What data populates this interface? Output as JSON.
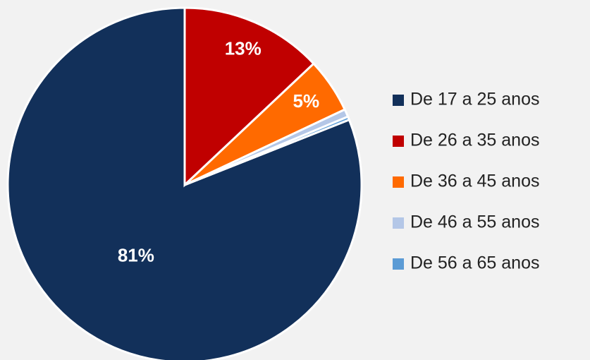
{
  "chart_data": {
    "type": "pie",
    "categories": [
      "De 17 a 25 anos",
      "De 26 a 35 anos",
      "De 36 a 45 anos",
      "De 46 a 55 anos",
      "De 56 a 65 anos"
    ],
    "values": [
      81,
      13,
      5,
      0.7,
      0.3
    ],
    "value_labels": [
      "81%",
      "13%",
      "5%",
      null,
      null
    ],
    "colors": [
      "#12305a",
      "#c00000",
      "#ff6a00",
      "#b4c7e7",
      "#5b9bd5"
    ],
    "legend": "right"
  }
}
